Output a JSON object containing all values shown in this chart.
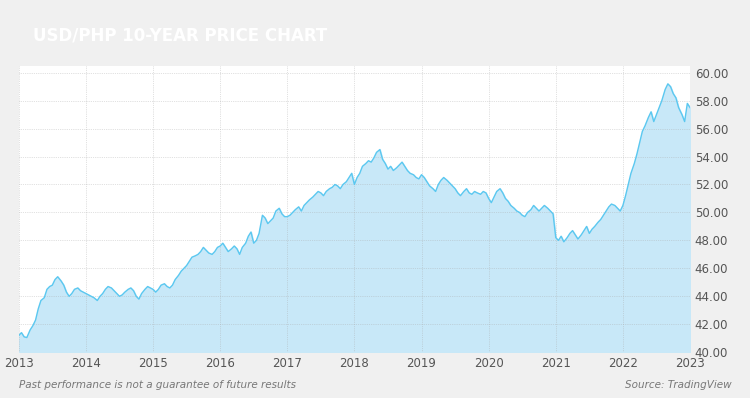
{
  "title": "USD/PHP 10-YEAR PRICE CHART",
  "title_bg_color": "#9e6b4a",
  "title_text_color": "#ffffff",
  "line_color": "#5bc8f0",
  "fill_color": "#c8e8f8",
  "background_color": "#f0f0f0",
  "plot_bg_color": "#ffffff",
  "grid_color": "#aaaaaa",
  "tick_color": "#555555",
  "ylim": [
    40.0,
    60.5
  ],
  "yticks": [
    40.0,
    42.0,
    44.0,
    46.0,
    48.0,
    50.0,
    52.0,
    54.0,
    56.0,
    58.0,
    60.0
  ],
  "xtick_labels": [
    "2013",
    "2014",
    "2015",
    "2016",
    "2017",
    "2018",
    "2019",
    "2020",
    "2021",
    "2022",
    "2023"
  ],
  "footer_left": "Past performance is not a guarantee of future results",
  "footer_right": "Source: TradingView",
  "years": [
    2013.0,
    2013.04,
    2013.08,
    2013.12,
    2013.17,
    2013.21,
    2013.25,
    2013.29,
    2013.33,
    2013.38,
    2013.42,
    2013.46,
    2013.5,
    2013.54,
    2013.58,
    2013.63,
    2013.67,
    2013.71,
    2013.75,
    2013.79,
    2013.83,
    2013.88,
    2013.92,
    2013.96,
    2014.0,
    2014.04,
    2014.08,
    2014.12,
    2014.17,
    2014.21,
    2014.25,
    2014.29,
    2014.33,
    2014.38,
    2014.42,
    2014.46,
    2014.5,
    2014.54,
    2014.58,
    2014.63,
    2014.67,
    2014.71,
    2014.75,
    2014.79,
    2014.83,
    2014.88,
    2014.92,
    2014.96,
    2015.0,
    2015.04,
    2015.08,
    2015.12,
    2015.17,
    2015.21,
    2015.25,
    2015.29,
    2015.33,
    2015.38,
    2015.42,
    2015.46,
    2015.5,
    2015.54,
    2015.58,
    2015.63,
    2015.67,
    2015.71,
    2015.75,
    2015.79,
    2015.83,
    2015.88,
    2015.92,
    2015.96,
    2016.0,
    2016.04,
    2016.08,
    2016.12,
    2016.17,
    2016.21,
    2016.25,
    2016.29,
    2016.33,
    2016.38,
    2016.42,
    2016.46,
    2016.5,
    2016.54,
    2016.58,
    2016.63,
    2016.67,
    2016.71,
    2016.75,
    2016.79,
    2016.83,
    2016.88,
    2016.92,
    2016.96,
    2017.0,
    2017.04,
    2017.08,
    2017.12,
    2017.17,
    2017.21,
    2017.25,
    2017.29,
    2017.33,
    2017.38,
    2017.42,
    2017.46,
    2017.5,
    2017.54,
    2017.58,
    2017.63,
    2017.67,
    2017.71,
    2017.75,
    2017.79,
    2017.83,
    2017.88,
    2017.92,
    2017.96,
    2018.0,
    2018.04,
    2018.08,
    2018.12,
    2018.17,
    2018.21,
    2018.25,
    2018.29,
    2018.33,
    2018.38,
    2018.42,
    2018.46,
    2018.5,
    2018.54,
    2018.58,
    2018.63,
    2018.67,
    2018.71,
    2018.75,
    2018.79,
    2018.83,
    2018.88,
    2018.92,
    2018.96,
    2019.0,
    2019.04,
    2019.08,
    2019.12,
    2019.17,
    2019.21,
    2019.25,
    2019.29,
    2019.33,
    2019.38,
    2019.42,
    2019.46,
    2019.5,
    2019.54,
    2019.58,
    2019.63,
    2019.67,
    2019.71,
    2019.75,
    2019.79,
    2019.83,
    2019.88,
    2019.92,
    2019.96,
    2020.0,
    2020.04,
    2020.08,
    2020.12,
    2020.17,
    2020.21,
    2020.25,
    2020.29,
    2020.33,
    2020.38,
    2020.42,
    2020.46,
    2020.5,
    2020.54,
    2020.58,
    2020.63,
    2020.67,
    2020.71,
    2020.75,
    2020.79,
    2020.83,
    2020.88,
    2020.92,
    2020.96,
    2021.0,
    2021.04,
    2021.08,
    2021.12,
    2021.17,
    2021.21,
    2021.25,
    2021.29,
    2021.33,
    2021.38,
    2021.42,
    2021.46,
    2021.5,
    2021.54,
    2021.58,
    2021.63,
    2021.67,
    2021.71,
    2021.75,
    2021.79,
    2021.83,
    2021.88,
    2021.92,
    2021.96,
    2022.0,
    2022.04,
    2022.08,
    2022.12,
    2022.17,
    2022.21,
    2022.25,
    2022.29,
    2022.33,
    2022.38,
    2022.42,
    2022.46,
    2022.5,
    2022.54,
    2022.58,
    2022.63,
    2022.67,
    2022.71,
    2022.75,
    2022.79,
    2022.83,
    2022.88,
    2022.92,
    2022.96,
    2023.0
  ],
  "values": [
    41.2,
    41.4,
    41.1,
    41.05,
    41.6,
    41.9,
    42.3,
    43.1,
    43.7,
    43.9,
    44.5,
    44.7,
    44.8,
    45.2,
    45.4,
    45.1,
    44.8,
    44.3,
    44.0,
    44.2,
    44.5,
    44.6,
    44.4,
    44.3,
    44.2,
    44.1,
    44.0,
    43.9,
    43.7,
    44.0,
    44.2,
    44.5,
    44.7,
    44.6,
    44.4,
    44.2,
    44.0,
    44.1,
    44.3,
    44.5,
    44.6,
    44.4,
    44.0,
    43.8,
    44.2,
    44.5,
    44.7,
    44.6,
    44.5,
    44.3,
    44.5,
    44.8,
    44.9,
    44.7,
    44.6,
    44.8,
    45.2,
    45.5,
    45.8,
    46.0,
    46.2,
    46.5,
    46.8,
    46.9,
    47.0,
    47.2,
    47.5,
    47.3,
    47.1,
    47.0,
    47.2,
    47.5,
    47.6,
    47.8,
    47.5,
    47.2,
    47.4,
    47.6,
    47.4,
    47.0,
    47.5,
    47.8,
    48.3,
    48.6,
    47.8,
    48.0,
    48.5,
    49.8,
    49.6,
    49.2,
    49.4,
    49.6,
    50.1,
    50.3,
    49.9,
    49.7,
    49.7,
    49.8,
    50.0,
    50.2,
    50.4,
    50.1,
    50.5,
    50.7,
    50.9,
    51.1,
    51.3,
    51.5,
    51.4,
    51.2,
    51.5,
    51.7,
    51.8,
    52.0,
    51.9,
    51.7,
    52.0,
    52.2,
    52.5,
    52.8,
    52.0,
    52.5,
    52.8,
    53.3,
    53.5,
    53.7,
    53.6,
    53.9,
    54.3,
    54.5,
    53.8,
    53.5,
    53.1,
    53.3,
    53.0,
    53.2,
    53.4,
    53.6,
    53.3,
    53.0,
    52.8,
    52.7,
    52.5,
    52.4,
    52.7,
    52.5,
    52.2,
    51.9,
    51.7,
    51.5,
    52.0,
    52.3,
    52.5,
    52.3,
    52.1,
    51.9,
    51.7,
    51.4,
    51.2,
    51.5,
    51.7,
    51.4,
    51.3,
    51.5,
    51.4,
    51.3,
    51.5,
    51.4,
    51.0,
    50.7,
    51.1,
    51.5,
    51.7,
    51.4,
    51.0,
    50.8,
    50.5,
    50.3,
    50.1,
    50.0,
    49.8,
    49.7,
    50.0,
    50.2,
    50.5,
    50.3,
    50.1,
    50.3,
    50.5,
    50.3,
    50.1,
    49.9,
    48.2,
    48.0,
    48.3,
    47.9,
    48.2,
    48.5,
    48.7,
    48.4,
    48.1,
    48.4,
    48.7,
    49.0,
    48.5,
    48.8,
    49.0,
    49.3,
    49.5,
    49.8,
    50.1,
    50.4,
    50.6,
    50.5,
    50.3,
    50.1,
    50.5,
    51.2,
    52.0,
    52.8,
    53.5,
    54.2,
    55.0,
    55.8,
    56.2,
    56.8,
    57.2,
    56.5,
    57.0,
    57.5,
    58.0,
    58.8,
    59.2,
    59.0,
    58.5,
    58.2,
    57.5,
    57.0,
    56.5,
    57.8,
    57.5
  ]
}
